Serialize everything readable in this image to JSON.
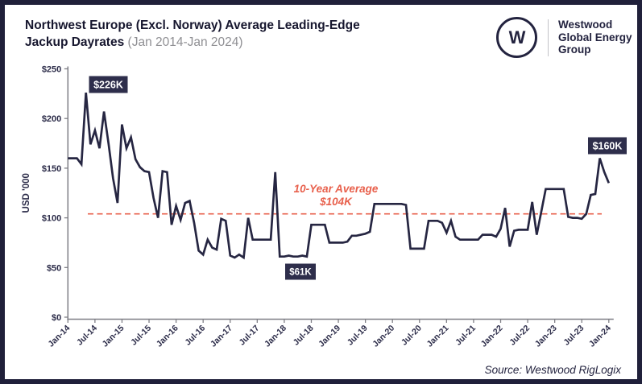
{
  "header": {
    "title_line1": "Northwest Europe (Excl. Norway) Average Leading-Edge",
    "title_line2_bold": "Jackup Dayrates",
    "title_line2_note": "(Jan 2014-Jan 2024)",
    "logo": {
      "monogram": "W",
      "brand_lines": [
        "Westwood",
        "Global Energy",
        "Group"
      ]
    }
  },
  "footer": {
    "source": "Source: Westwood RigLogix"
  },
  "chart_data": {
    "type": "line",
    "title": "Northwest Europe (Excl. Norway) Average Leading-Edge Jackup Dayrates (Jan 2014-Jan 2024)",
    "xlabel": "",
    "ylabel": "USD '000",
    "ylim": [
      0,
      250
    ],
    "grid": false,
    "legend": false,
    "y_tick_labels": [
      "$0",
      "$50",
      "$100",
      "$150",
      "$200",
      "$250"
    ],
    "x_tick_labels": [
      "Jan-14",
      "Jul-14",
      "Jan-15",
      "Jul-15",
      "Jan-16",
      "Jul-16",
      "Jan-17",
      "Jul-17",
      "Jan-18",
      "Jul-18",
      "Jan-19",
      "Jul-19",
      "Jan-20",
      "Jul-20",
      "Jan-21",
      "Jul-21",
      "Jan-22",
      "Jul-22",
      "Jan-23",
      "Jul-23",
      "Jan-24"
    ],
    "series_start": "Jan-2014",
    "series_freq": "monthly",
    "line_color": "#262642",
    "values": [
      160,
      160,
      160,
      154,
      226,
      174,
      188,
      170,
      207,
      175,
      140,
      115,
      194,
      170,
      181,
      159,
      151,
      147,
      146,
      120,
      100,
      147,
      146,
      93,
      112,
      98,
      115,
      117,
      95,
      67,
      63,
      78,
      70,
      68,
      99,
      97,
      62,
      60,
      63,
      60,
      100,
      78,
      78,
      78,
      78,
      78,
      146,
      61,
      61,
      62,
      61,
      61,
      62,
      61,
      93,
      93,
      93,
      93,
      75,
      75,
      75,
      75,
      76,
      82,
      82,
      83,
      84,
      86,
      114,
      114,
      114,
      114,
      114,
      114,
      114,
      113,
      69,
      69,
      69,
      69,
      97,
      97,
      97,
      95,
      85,
      97,
      81,
      78,
      78,
      78,
      78,
      78,
      83,
      83,
      83,
      81,
      89,
      110,
      71,
      87,
      88,
      88,
      88,
      116,
      83,
      106,
      129,
      129,
      129,
      129,
      129,
      101,
      100,
      100,
      99,
      104,
      123,
      124,
      160,
      146,
      135
    ],
    "average_line": {
      "value": 104,
      "color": "#e8604c",
      "label_line1": "10-Year Average",
      "label_line2": "$104K"
    },
    "annotations": [
      {
        "label": "$226K",
        "index": 4,
        "value": 226
      },
      {
        "label": "$61K",
        "index": 48,
        "value": 61
      },
      {
        "label": "$160K",
        "index": 118,
        "value": 160
      }
    ]
  }
}
